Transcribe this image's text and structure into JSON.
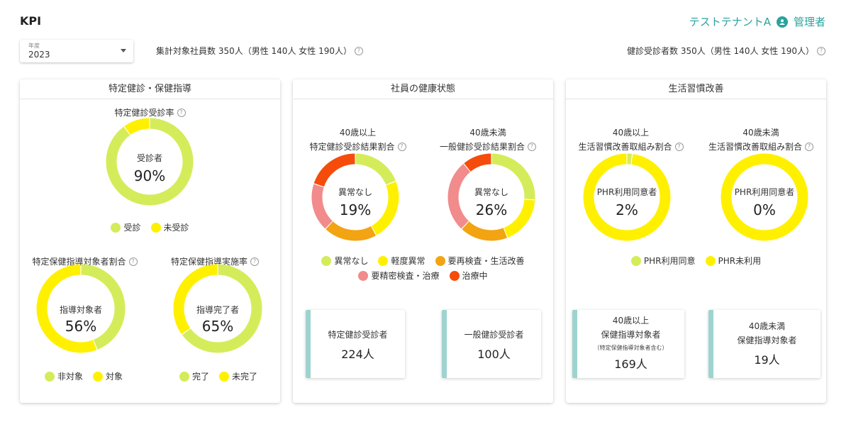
{
  "header": {
    "title": "KPI",
    "tenant": "テストテナントA",
    "user_icon": "user-icon",
    "user": "管理者"
  },
  "filters": {
    "year_label": "年度",
    "year_value": "2023"
  },
  "stats": {
    "target_employees": "集計対象社員数 350人（男性 140人 女性 190人）",
    "examinees": "健診受診者数 350人（男性 140人 女性 190人）"
  },
  "colors": {
    "lightgreen": "#d5ec5a",
    "yellow": "#fff000",
    "orange": "#f2a412",
    "pink": "#f28b8b",
    "red": "#f54c0c",
    "teal": "#2aa39c",
    "card_accent": "#9ed4cf"
  },
  "panels": {
    "p1": {
      "title": "特定健診・保健指導",
      "d1": {
        "caption": "特定健診受診率",
        "label": "受診者",
        "pct": "90%",
        "legend": [
          "受診",
          "未受診"
        ]
      },
      "d2": {
        "caption": "特定保健指導対象者割合",
        "label": "指導対象者",
        "pct": "56%",
        "legend": [
          "非対象",
          "対象"
        ]
      },
      "d3": {
        "caption": "特定保健指導実施率",
        "label": "指導完了者",
        "pct": "65%",
        "legend": [
          "完了",
          "未完了"
        ]
      }
    },
    "p2": {
      "title": "社員の健康状態",
      "d1": {
        "caption1": "40歳以上",
        "caption2": "特定健診受診結果割合",
        "label": "異常なし",
        "pct": "19%"
      },
      "d2": {
        "caption1": "40歳未満",
        "caption2": "一般健診受診結果割合",
        "label": "異常なし",
        "pct": "26%"
      },
      "legend": [
        "異常なし",
        "軽度異常",
        "要再検査・生活改善",
        "要精密検査・治療",
        "治療中"
      ],
      "card1": {
        "title": "特定健診受診者",
        "value": "224人"
      },
      "card2": {
        "title": "一般健診受診者",
        "value": "100人"
      }
    },
    "p3": {
      "title": "生活習慣改善",
      "d1": {
        "caption1": "40歳以上",
        "caption2": "生活習慣改善取組み割合",
        "label": "PHR利用同意者",
        "pct": "2%"
      },
      "d2": {
        "caption1": "40歳未満",
        "caption2": "生活習慣改善取組み割合",
        "label": "PHR利用同意者",
        "pct": "0%"
      },
      "legend": [
        "PHR利用同意",
        "PHR未利用"
      ],
      "card1": {
        "title1": "40歳以上",
        "title2": "保健指導対象者",
        "note": "（特定保健指導対象者含む）",
        "value": "169人"
      },
      "card2": {
        "title1": "40歳未満",
        "title2": "保健指導対象者",
        "value": "19人"
      }
    }
  },
  "chart_data": [
    {
      "type": "pie",
      "title": "特定健診受診率",
      "categories": [
        "受診",
        "未受診"
      ],
      "values": [
        90,
        10
      ]
    },
    {
      "type": "pie",
      "title": "特定保健指導対象者割合",
      "categories": [
        "非対象",
        "対象"
      ],
      "values": [
        44,
        56
      ]
    },
    {
      "type": "pie",
      "title": "特定保健指導実施率",
      "categories": [
        "完了",
        "未完了"
      ],
      "values": [
        65,
        35
      ]
    },
    {
      "type": "pie",
      "title": "特定健診受診結果割合",
      "categories": [
        "異常なし",
        "軽度異常",
        "要再検査・生活改善",
        "要精密検査・治療",
        "治療中"
      ],
      "values": [
        19,
        23,
        20,
        18,
        20
      ]
    },
    {
      "type": "pie",
      "title": "一般健診受診結果割合",
      "categories": [
        "異常なし",
        "軽度異常",
        "要再検査・生活改善",
        "要精密検査・治療",
        "治療中"
      ],
      "values": [
        26,
        18,
        18,
        27,
        11
      ]
    },
    {
      "type": "pie",
      "title": "生活習慣改善取組み割合",
      "categories": [
        "PHR利用同意",
        "PHR未利用"
      ],
      "values": [
        2,
        98
      ]
    },
    {
      "type": "pie",
      "title": "生活習慣改善取組み割合",
      "categories": [
        "PHR利用同意",
        "PHR未利用"
      ],
      "values": [
        0,
        100
      ]
    }
  ]
}
